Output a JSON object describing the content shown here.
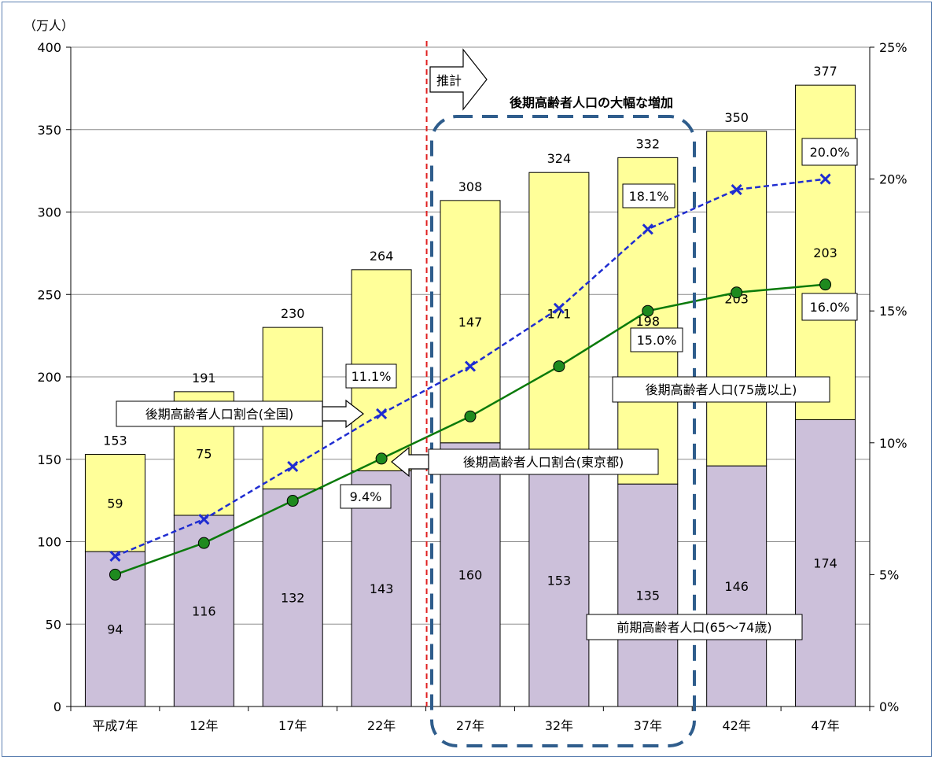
{
  "chart_data": {
    "type": "bar",
    "y_unit_label": "（万人）",
    "categories": [
      "平成7年",
      "12年",
      "17年",
      "22年",
      "27年",
      "32年",
      "37年",
      "42年",
      "47年"
    ],
    "ylim": [
      0,
      400
    ],
    "y_ticks": [
      "0",
      "50",
      "100",
      "150",
      "200",
      "250",
      "300",
      "350",
      "400"
    ],
    "y2lim": [
      0,
      25
    ],
    "y2_ticks": [
      "0%",
      "5%",
      "10%",
      "15%",
      "20%",
      "25%"
    ],
    "stacked_series": [
      {
        "name": "前期高齢者人口(65～74歳)",
        "color": "#ccc0da",
        "values": [
          94,
          116,
          132,
          143,
          160,
          153,
          135,
          146,
          174
        ]
      },
      {
        "name": "後期高齢者人口(75歳以上)",
        "color": "#ffff99",
        "values": [
          59,
          75,
          98,
          122,
          147,
          171,
          198,
          203,
          203
        ]
      }
    ],
    "totals": [
      153,
      191,
      230,
      264,
      308,
      324,
      332,
      350,
      377
    ],
    "line_series": [
      {
        "name": "後期高齢者人口割合(全国)",
        "color": "#1f2dd1",
        "values": [
          5.7,
          7.1,
          9.1,
          11.1,
          12.9,
          15.1,
          18.1,
          19.6,
          20.0
        ]
      },
      {
        "name": "後期高齢者人口割合(東京都)",
        "color": "#0a7a0a",
        "values": [
          5.0,
          6.2,
          7.8,
          9.4,
          11.0,
          12.9,
          15.0,
          15.7,
          16.0
        ]
      }
    ],
    "labels": {
      "projection": "推計",
      "highlight": "後期高齢者人口の大幅な増加",
      "national_callout": "後期高齢者人口割合(全国)",
      "tokyo_callout": "後期高齢者人口割合(東京都)",
      "late_callout": "後期高齢者人口(75歳以上)",
      "early_callout": "前期高齢者人口(65～74歳)",
      "pct_22_national": "11.1%",
      "pct_22_tokyo": "9.4%",
      "pct_37_national": "18.1%",
      "pct_37_tokyo": "15.0%",
      "pct_47_national": "20.0%",
      "pct_47_tokyo": "16.0%"
    }
  }
}
